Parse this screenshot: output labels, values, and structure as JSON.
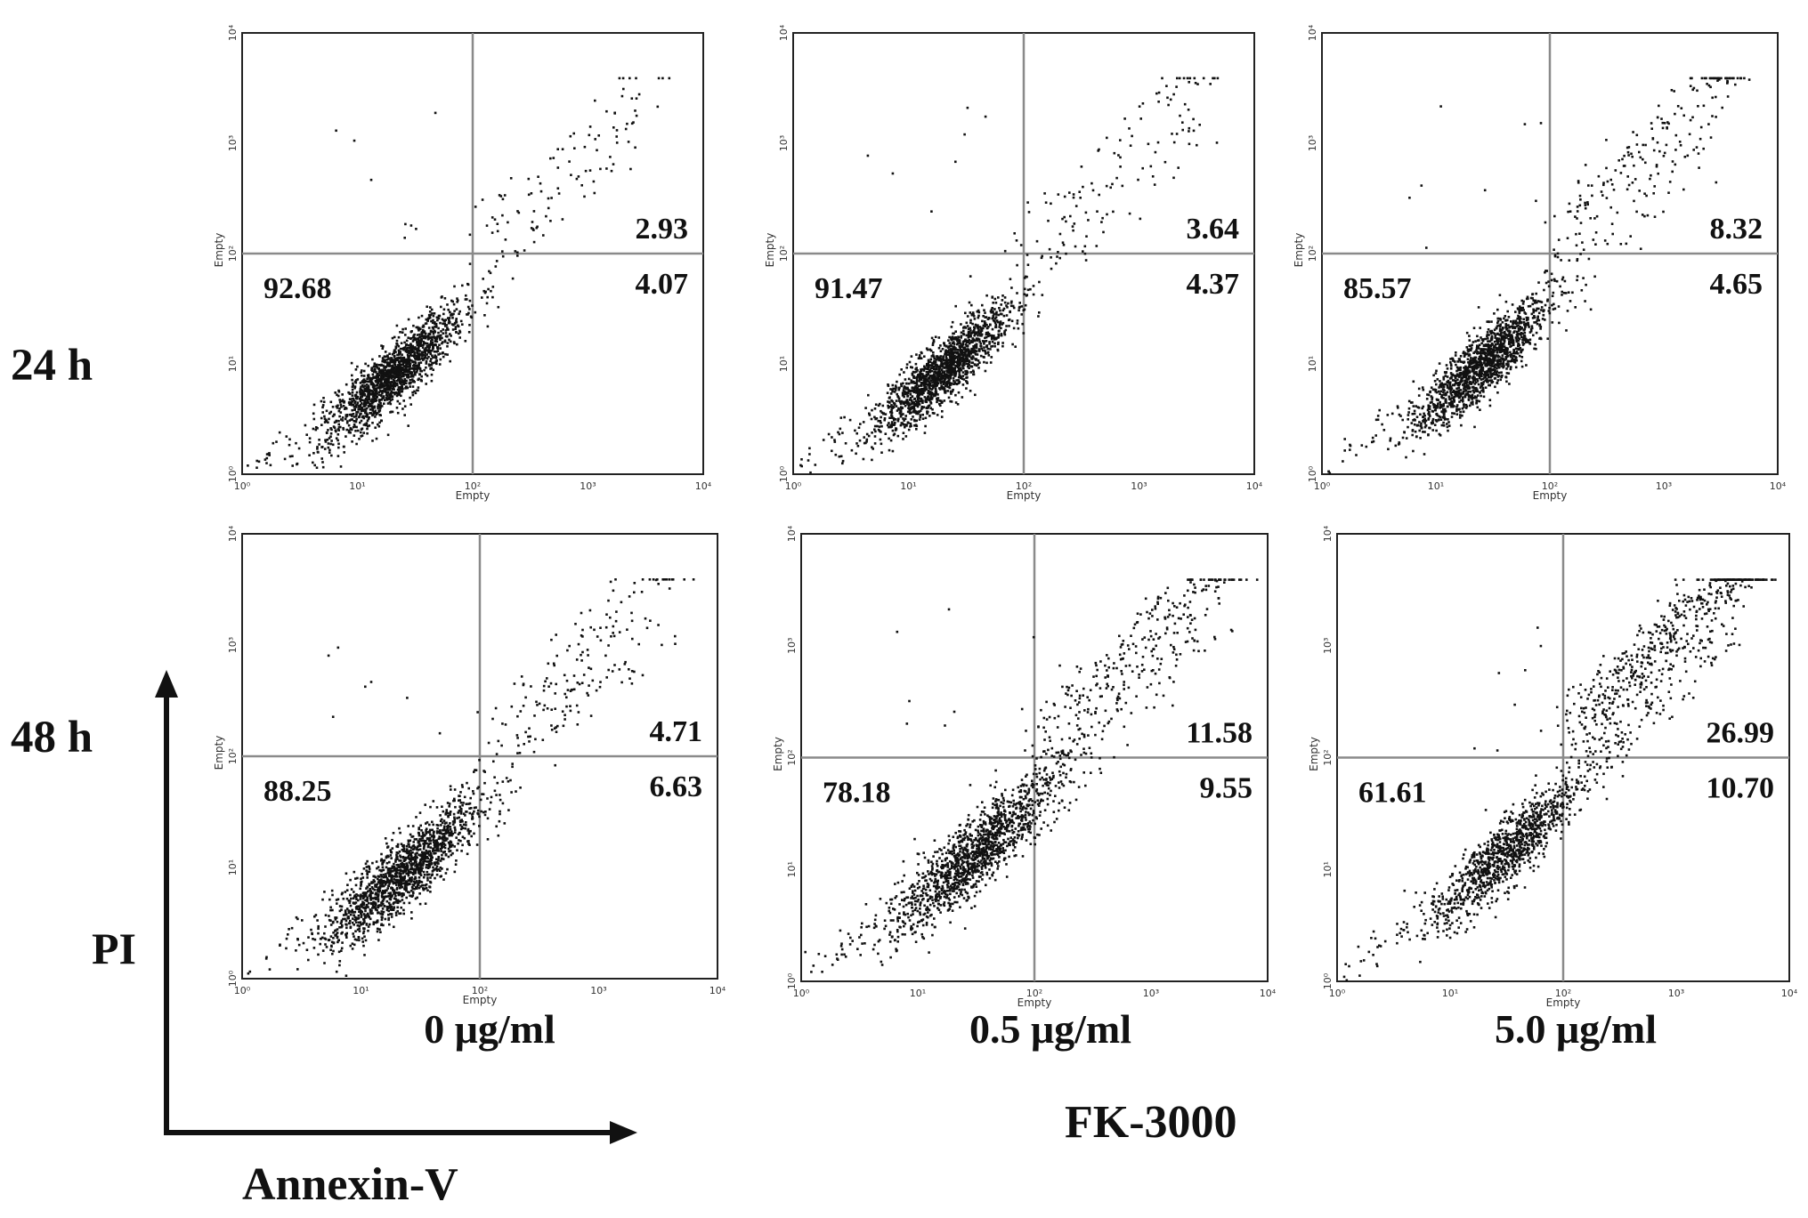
{
  "figure": {
    "row_labels": [
      "24 h",
      "48 h"
    ],
    "concentration_labels": [
      "0 μg/ml",
      "0.5 μg/ml",
      "5.0 μg/ml"
    ],
    "treatment_label": "FK-3000",
    "y_axis_label": "PI",
    "x_axis_label": "Annexin-V",
    "colors": {
      "dots": "#111111",
      "frame": "#222222",
      "gate_lines": "#8a8a8a",
      "text": "#111111"
    }
  },
  "chart_data": [
    {
      "type": "scatter",
      "time": "24 h",
      "concentration": "0 μg/ml",
      "xlabel": "Empty",
      "ylabel": "Empty",
      "xscale": "log",
      "yscale": "log",
      "xlim": [
        1,
        10000
      ],
      "ylim": [
        1,
        10000
      ],
      "x_ticks": [
        "10⁰",
        "10¹",
        "10²",
        "10³",
        "10⁴"
      ],
      "y_ticks": [
        "10⁰",
        "10¹",
        "10²",
        "10³",
        "10⁴"
      ],
      "gate": {
        "x": 100,
        "y": 100
      },
      "quadrant_percentages": {
        "upper_left": null,
        "upper_right": "2.93",
        "lower_left": "92.68",
        "lower_right": "4.07"
      },
      "population": {
        "center": [
          20,
          8
        ],
        "spread": 0.22,
        "dead_fraction": 0.03,
        "early_fraction": 0.04
      }
    },
    {
      "type": "scatter",
      "time": "24 h",
      "concentration": "0.5 μg/ml",
      "xlabel": "Empty",
      "ylabel": "Empty",
      "xscale": "log",
      "yscale": "log",
      "xlim": [
        1,
        10000
      ],
      "ylim": [
        1,
        10000
      ],
      "x_ticks": [
        "10⁰",
        "10¹",
        "10²",
        "10³",
        "10⁴"
      ],
      "y_ticks": [
        "10⁰",
        "10¹",
        "10²",
        "10³",
        "10⁴"
      ],
      "gate": {
        "x": 100,
        "y": 100
      },
      "quadrant_percentages": {
        "upper_left": null,
        "upper_right": "3.64",
        "lower_left": "91.47",
        "lower_right": "4.37"
      },
      "population": {
        "center": [
          20,
          9
        ],
        "spread": 0.22,
        "dead_fraction": 0.036,
        "early_fraction": 0.044
      }
    },
    {
      "type": "scatter",
      "time": "24 h",
      "concentration": "5.0 μg/ml",
      "xlabel": "Empty",
      "ylabel": "Empty",
      "xscale": "log",
      "yscale": "log",
      "xlim": [
        1,
        10000
      ],
      "ylim": [
        1,
        10000
      ],
      "x_ticks": [
        "10⁰",
        "10¹",
        "10²",
        "10³",
        "10⁴"
      ],
      "y_ticks": [
        "10⁰",
        "10¹",
        "10²",
        "10³",
        "10⁴"
      ],
      "gate": {
        "x": 100,
        "y": 100
      },
      "quadrant_percentages": {
        "upper_left": null,
        "upper_right": "8.32",
        "lower_left": "85.57",
        "lower_right": "4.65"
      },
      "population": {
        "center": [
          25,
          10
        ],
        "spread": 0.22,
        "dead_fraction": 0.083,
        "early_fraction": 0.047
      }
    },
    {
      "type": "scatter",
      "time": "48 h",
      "concentration": "0 μg/ml",
      "xlabel": "Empty",
      "ylabel": "Empty",
      "xscale": "log",
      "yscale": "log",
      "xlim": [
        1,
        10000
      ],
      "ylim": [
        1,
        10000
      ],
      "x_ticks": [
        "10⁰",
        "10¹",
        "10²",
        "10³",
        "10⁴"
      ],
      "y_ticks": [
        "10⁰",
        "10¹",
        "10²",
        "10³",
        "10⁴"
      ],
      "gate": {
        "x": 100,
        "y": 100
      },
      "quadrant_percentages": {
        "upper_left": null,
        "upper_right": "4.71",
        "lower_left": "88.25",
        "lower_right": "6.63"
      },
      "population": {
        "center": [
          22,
          9
        ],
        "spread": 0.24,
        "dead_fraction": 0.047,
        "early_fraction": 0.066
      }
    },
    {
      "type": "scatter",
      "time": "48 h",
      "concentration": "0.5 μg/ml",
      "xlabel": "Empty",
      "ylabel": "Empty",
      "xscale": "log",
      "yscale": "log",
      "xlim": [
        1,
        10000
      ],
      "ylim": [
        1,
        10000
      ],
      "x_ticks": [
        "10⁰",
        "10¹",
        "10²",
        "10³",
        "10⁴"
      ],
      "y_ticks": [
        "10⁰",
        "10¹",
        "10²",
        "10³",
        "10⁴"
      ],
      "gate": {
        "x": 100,
        "y": 100
      },
      "quadrant_percentages": {
        "upper_left": null,
        "upper_right": "11.58",
        "lower_left": "78.18",
        "lower_right": "9.55"
      },
      "population": {
        "center": [
          30,
          14
        ],
        "spread": 0.26,
        "dead_fraction": 0.116,
        "early_fraction": 0.096
      }
    },
    {
      "type": "scatter",
      "time": "48 h",
      "concentration": "5.0 μg/ml",
      "xlabel": "Empty",
      "ylabel": "Empty",
      "xscale": "log",
      "yscale": "log",
      "xlim": [
        1,
        10000
      ],
      "ylim": [
        1,
        10000
      ],
      "x_ticks": [
        "10⁰",
        "10¹",
        "10²",
        "10³",
        "10⁴"
      ],
      "y_ticks": [
        "10⁰",
        "10¹",
        "10²",
        "10³",
        "10⁴"
      ],
      "gate": {
        "x": 100,
        "y": 100
      },
      "quadrant_percentages": {
        "upper_left": null,
        "upper_right": "26.99",
        "lower_left": "61.61",
        "lower_right": "10.70"
      },
      "population": {
        "center": [
          30,
          14
        ],
        "spread": 0.24,
        "dead_fraction": 0.27,
        "early_fraction": 0.107
      }
    }
  ]
}
